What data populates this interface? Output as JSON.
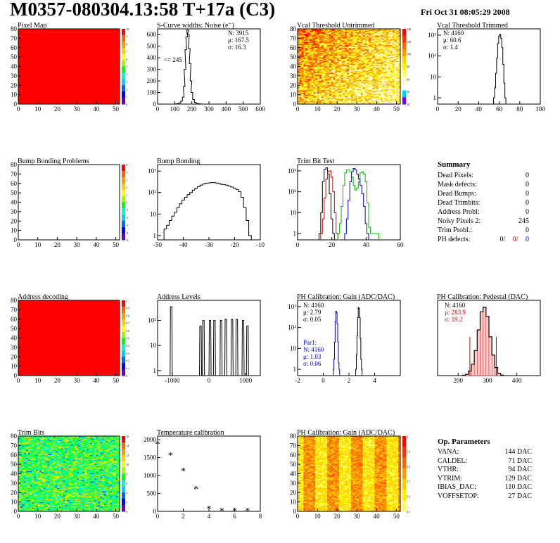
{
  "header": {
    "title": "M0357-080304.13:58 T+17a (C3)",
    "date": "Fri Oct 31 08:05:29 2008"
  },
  "colors": {
    "map_red": "#ff0000",
    "black": "#000000",
    "red": "#cc0000",
    "green": "#00bb00",
    "blue": "#0000cc"
  },
  "chart_data": [
    {
      "id": "pixel-map",
      "type": "heatmap",
      "title": "Pixel Map",
      "xticks": [
        "0",
        "10",
        "20",
        "30",
        "40",
        "50"
      ],
      "yticks": [
        "0",
        "10",
        "20",
        "30",
        "40",
        "50",
        "60",
        "70",
        "80"
      ],
      "xlim": [
        0,
        52
      ],
      "ylim": [
        0,
        80
      ],
      "fill": "uniform red",
      "zticks": [
        "10",
        "9",
        "8",
        "7",
        "6",
        "5",
        "4",
        "3",
        "2",
        "1",
        "0"
      ]
    },
    {
      "id": "scurve",
      "type": "histogram",
      "title": "S-Curve widths: Noise (e⁻)",
      "xticks": [
        "0",
        "100",
        "200",
        "300",
        "400",
        "500",
        "600"
      ],
      "yticks": [
        "0",
        "100",
        "200",
        "300",
        "400",
        "500",
        "600"
      ],
      "xlim": [
        0,
        600
      ],
      "ylim": [
        0,
        650
      ],
      "stats": [
        "N: 3915",
        "μ: 167.5",
        "σ: 16.3"
      ],
      "annotation": "<= 245",
      "x": [
        100,
        110,
        120,
        130,
        140,
        150,
        155,
        160,
        165,
        170,
        175,
        180,
        185,
        190,
        195,
        200,
        210,
        220,
        230,
        240,
        260,
        280
      ],
      "y": [
        0,
        2,
        5,
        10,
        25,
        60,
        150,
        300,
        470,
        580,
        640,
        600,
        480,
        350,
        200,
        100,
        40,
        15,
        6,
        3,
        1,
        0
      ]
    },
    {
      "id": "vcal-untrimmed",
      "type": "heatmap",
      "title": "Vcal Threshold Untrimmed",
      "xticks": [
        "0",
        "10",
        "20",
        "30",
        "40",
        "50"
      ],
      "yticks": [
        "0",
        "10",
        "20",
        "30",
        "40",
        "50",
        "60",
        "70",
        "80"
      ],
      "xlim": [
        0,
        52
      ],
      "ylim": [
        0,
        80
      ],
      "zticks": [
        "140",
        "120",
        "100",
        "80",
        "60",
        "40",
        "20"
      ]
    },
    {
      "id": "vcal-trimmed",
      "type": "histogram",
      "title": "Vcal Threshold Trimmed",
      "log": true,
      "xticks": [
        "0",
        "20",
        "40",
        "60",
        "80",
        "100"
      ],
      "yticks": [
        "1",
        "10",
        "10²",
        "10³"
      ],
      "xlim": [
        0,
        100
      ],
      "stats": [
        "N: 4160",
        "μ: 60.6",
        "σ:  1.4"
      ],
      "x": [
        55,
        56,
        57,
        58,
        59,
        60,
        61,
        62,
        63,
        64,
        65,
        66
      ],
      "y": [
        1,
        3,
        15,
        80,
        400,
        900,
        1100,
        700,
        250,
        40,
        5,
        1
      ]
    },
    {
      "id": "bump-problems",
      "type": "heatmap",
      "title": "Bump Bonding Problems",
      "xticks": [
        "0",
        "10",
        "20",
        "30",
        "40",
        "50"
      ],
      "yticks": [
        "0",
        "10",
        "20",
        "30",
        "40",
        "50",
        "60",
        "70",
        "80"
      ],
      "xlim": [
        0,
        52
      ],
      "ylim": [
        0,
        80
      ],
      "zticks": [
        "5",
        "4",
        "3",
        "2",
        "1",
        "0",
        "-1",
        "-2",
        "-3",
        "-4",
        "-5"
      ]
    },
    {
      "id": "bump-bonding",
      "type": "histogram",
      "title": "Bump Bonding",
      "log": true,
      "xticks": [
        "-50",
        "-40",
        "-30",
        "-20",
        "-10"
      ],
      "yticks": [
        "1",
        "10",
        "10²",
        "10³"
      ],
      "xlim": [
        -50,
        -10
      ],
      "x": [
        -48,
        -47,
        -46,
        -45,
        -44,
        -43,
        -42,
        -41,
        -40,
        -39,
        -38,
        -37,
        -36,
        -35,
        -34,
        -33,
        -32,
        -31,
        -30,
        -29,
        -28,
        -27,
        -26,
        -25,
        -24,
        -23,
        -22,
        -21,
        -20,
        -19,
        -18,
        -17,
        -16,
        -15,
        -14,
        -13
      ],
      "y": [
        0.5,
        2,
        3,
        5,
        8,
        12,
        20,
        30,
        45,
        60,
        80,
        100,
        130,
        160,
        190,
        220,
        250,
        270,
        280,
        290,
        290,
        280,
        260,
        240,
        230,
        220,
        200,
        180,
        160,
        140,
        110,
        60,
        20,
        5,
        1,
        0.5
      ]
    },
    {
      "id": "trim-bit-test",
      "type": "histogram",
      "title": "Trim Bit Test",
      "log": true,
      "xticks": [
        "0",
        "20",
        "40",
        "60"
      ],
      "yticks": [
        "1",
        "10",
        "10²",
        "10³"
      ],
      "xlim": [
        0,
        60
      ],
      "series": [
        {
          "x": [
            13,
            14,
            15,
            16,
            17,
            18,
            19,
            20,
            21,
            22
          ],
          "y": [
            1,
            10,
            300,
            1200,
            1400,
            700,
            80,
            5,
            1,
            0.5
          ]
        },
        {
          "x": [
            14,
            15,
            16,
            17,
            18,
            19,
            20,
            21,
            22,
            23,
            24
          ],
          "y": [
            1,
            5,
            50,
            400,
            900,
            1000,
            500,
            100,
            10,
            1,
            0.5
          ]
        },
        {
          "x": [
            24,
            25,
            26,
            27,
            28,
            29,
            30,
            31,
            32,
            33,
            34,
            35,
            36,
            37,
            38,
            39,
            40,
            41,
            42,
            43,
            44,
            45,
            46,
            47
          ],
          "y": [
            1,
            3,
            20,
            200,
            800,
            1100,
            1100,
            900,
            500,
            200,
            120,
            150,
            300,
            800,
            900,
            700,
            300,
            30,
            2,
            1,
            1,
            1,
            1,
            1
          ]
        },
        {
          "x": [
            28,
            29,
            30,
            31,
            32,
            33,
            34,
            35,
            36,
            37,
            38,
            39,
            40,
            41,
            42
          ],
          "y": [
            1,
            5,
            40,
            300,
            900,
            1300,
            1100,
            700,
            400,
            200,
            80,
            20,
            3,
            1,
            0.5
          ]
        }
      ]
    },
    {
      "id": "address-decoding",
      "type": "heatmap",
      "title": "Address decoding",
      "xticks": [
        "0",
        "10",
        "20",
        "30",
        "40",
        "50"
      ],
      "yticks": [
        "0",
        "10",
        "20",
        "30",
        "40",
        "50",
        "60",
        "70",
        "80"
      ],
      "xlim": [
        0,
        52
      ],
      "ylim": [
        0,
        80
      ],
      "fill": "uniform red",
      "zticks": [
        "1",
        "0.9",
        "0.8",
        "0.7",
        "0.6",
        "0.5",
        "0.4",
        "0.3",
        "0.2",
        "0.1",
        "0"
      ]
    },
    {
      "id": "address-levels",
      "type": "histogram",
      "title": "Address Levels",
      "log": true,
      "xticks": [
        "-1000",
        "0",
        "1000"
      ],
      "yticks": [
        "1",
        "10",
        "10²"
      ],
      "xlim": [
        -1400,
        1400
      ],
      "peaks": [
        -1030,
        -230,
        -150,
        30,
        150,
        330,
        460,
        630,
        760,
        930,
        1050
      ],
      "peak_heights": [
        350,
        60,
        100,
        100,
        100,
        100,
        110,
        110,
        110,
        100,
        60
      ]
    },
    {
      "id": "ph-gain",
      "type": "histogram",
      "title": "PH Calibration: Gain (ADC/DAC)",
      "log": true,
      "xticks": [
        "-2",
        "0",
        "2",
        "4"
      ],
      "yticks": [
        "1",
        "10",
        "10²",
        "10³"
      ],
      "xlim": [
        -2,
        6
      ],
      "stats": [
        "N: 4160",
        "μ: 2.79",
        "σ: 0.05"
      ],
      "par1": [
        "Par1:",
        "N: 4160",
        "μ: 1.03",
        "σ: 0.06"
      ],
      "series": [
        {
          "name": "",
          "x": [
            2.55,
            2.6,
            2.65,
            2.7,
            2.75,
            2.8,
            2.85,
            2.9,
            2.95,
            3.0
          ],
          "y": [
            1,
            5,
            40,
            300,
            900,
            800,
            300,
            30,
            3,
            1
          ]
        },
        {
          "name": "",
          "x": [
            0.8,
            0.85,
            0.9,
            0.95,
            1.0,
            1.05,
            1.1,
            1.15,
            1.2,
            1.25
          ],
          "y": [
            1,
            3,
            20,
            200,
            600,
            500,
            150,
            20,
            2,
            1
          ]
        }
      ]
    },
    {
      "id": "ph-pedestal",
      "type": "histogram",
      "title": "PH Calibration: Pedestal (DAC)",
      "xticks": [
        "200",
        "300",
        "400"
      ],
      "xlim": [
        130,
        480
      ],
      "stats": [
        "N: 4160",
        "μ: 283.9",
        "σ: 19.2"
      ],
      "x": [
        220,
        230,
        240,
        250,
        260,
        270,
        280,
        290,
        300,
        310,
        320,
        330,
        340,
        350
      ],
      "y": [
        2,
        6,
        20,
        50,
        110,
        200,
        280,
        300,
        260,
        170,
        90,
        35,
        10,
        2
      ]
    },
    {
      "id": "trim-bits",
      "type": "heatmap",
      "title": "Trim Bits",
      "xticks": [
        "0",
        "10",
        "20",
        "30",
        "40",
        "50"
      ],
      "yticks": [
        "0",
        "10",
        "20",
        "30",
        "40",
        "50",
        "60",
        "70",
        "80"
      ],
      "xlim": [
        0,
        52
      ],
      "ylim": [
        0,
        80
      ],
      "zticks": [
        "16",
        "14",
        "12",
        "10",
        "8",
        "6",
        "4",
        "2",
        "0"
      ]
    },
    {
      "id": "temperature",
      "type": "scatter",
      "title": "Temperature calibration",
      "xticks": [
        "0",
        "2",
        "4",
        "6",
        "8"
      ],
      "yticks": [
        "0",
        "500",
        "1000",
        "1500",
        "2000"
      ],
      "xlim": [
        0,
        8
      ],
      "ylim": [
        0,
        2100
      ],
      "x": [
        0,
        1,
        2,
        3,
        4,
        5,
        6,
        7
      ],
      "y": [
        1880,
        1570,
        1140,
        630,
        80,
        20,
        15,
        15
      ]
    },
    {
      "id": "ph-gain-map",
      "type": "heatmap",
      "title": "PH Calibration: Gain (ADC/DAC)",
      "xticks": [
        "0",
        "10",
        "20",
        "30",
        "40",
        "50"
      ],
      "yticks": [
        "0",
        "10",
        "20",
        "30",
        "40",
        "50",
        "60",
        "70",
        "80"
      ],
      "xlim": [
        0,
        52
      ],
      "ylim": [
        0,
        80
      ],
      "zticks": [
        "3",
        "2.9",
        "2.8",
        "2.7",
        "2.6",
        "2.5"
      ]
    }
  ],
  "summary": {
    "title": "Summary",
    "rows": [
      {
        "label": "Dead Pixels:",
        "value": "0"
      },
      {
        "label": "Mask defects:",
        "value": "0"
      },
      {
        "label": "Dead Bumps:",
        "value": "0"
      },
      {
        "label": "Dead Trimbits:",
        "value": "0"
      },
      {
        "label": "Address Probl:",
        "value": "0"
      },
      {
        "label": "Noisy Pixels 2:",
        "value": "245"
      },
      {
        "label": "Trim Probl.:",
        "value": "0"
      }
    ],
    "ph_label": "PH defects:",
    "ph_values": [
      "0/",
      "0/",
      "0"
    ]
  },
  "params": {
    "title": "Op. Parameters",
    "rows": [
      {
        "label": "VANA:",
        "value": "144 DAC"
      },
      {
        "label": "CALDEL:",
        "value": "71 DAC"
      },
      {
        "label": "VTHR:",
        "value": "94 DAC"
      },
      {
        "label": "VTRIM:",
        "value": "129 DAC"
      },
      {
        "label": "IBIAS_DAC:",
        "value": "110 DAC"
      },
      {
        "label": "VOFFSETOP:",
        "value": "27 DAC"
      }
    ]
  }
}
